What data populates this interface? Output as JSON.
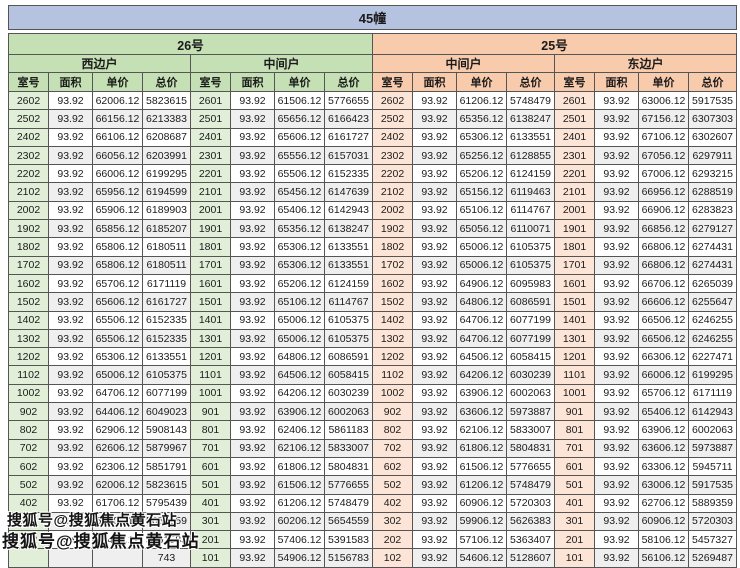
{
  "title": "45幢",
  "watermark": {
    "text": "搜狐号@搜狐焦点黄石站"
  },
  "columns": [
    "室号",
    "面积",
    "单价",
    "总价"
  ],
  "colors": {
    "title_bg": "#b6c3e0",
    "green_header": "#c5e0b4",
    "green_tint": "#e1efd8",
    "orange_header": "#f8cbad",
    "orange_tint": "#fce4d6",
    "border": "#555555",
    "stripe": "#efefef",
    "text": "#1b1b1b"
  },
  "buildings": [
    {
      "name": "26号",
      "theme": "green",
      "units": [
        {
          "name": "西边户",
          "rows": [
            [
              "2602",
              "93.92",
              "62006.12",
              "5823615"
            ],
            [
              "2502",
              "93.92",
              "66156.12",
              "6213383"
            ],
            [
              "2402",
              "93.92",
              "66106.12",
              "6208687"
            ],
            [
              "2302",
              "93.92",
              "66056.12",
              "6203991"
            ],
            [
              "2202",
              "93.92",
              "66006.12",
              "6199295"
            ],
            [
              "2102",
              "93.92",
              "65956.12",
              "6194599"
            ],
            [
              "2002",
              "93.92",
              "65906.12",
              "6189903"
            ],
            [
              "1902",
              "93.92",
              "65856.12",
              "6185207"
            ],
            [
              "1802",
              "93.92",
              "65806.12",
              "6180511"
            ],
            [
              "1702",
              "93.92",
              "65806.12",
              "6180511"
            ],
            [
              "1602",
              "93.92",
              "65706.12",
              "6171119"
            ],
            [
              "1502",
              "93.92",
              "65606.12",
              "6161727"
            ],
            [
              "1402",
              "93.92",
              "65506.12",
              "6152335"
            ],
            [
              "1302",
              "93.92",
              "65506.12",
              "6152335"
            ],
            [
              "1202",
              "93.92",
              "65306.12",
              "6133551"
            ],
            [
              "1102",
              "93.92",
              "65006.12",
              "6105375"
            ],
            [
              "1002",
              "93.92",
              "64706.12",
              "6077199"
            ],
            [
              "902",
              "93.92",
              "64406.12",
              "6049023"
            ],
            [
              "802",
              "93.92",
              "62906.12",
              "5908143"
            ],
            [
              "702",
              "93.92",
              "62606.12",
              "5879967"
            ],
            [
              "602",
              "93.92",
              "62306.12",
              "5851791"
            ],
            [
              "502",
              "93.92",
              "62006.12",
              "5823615"
            ],
            [
              "402",
              "93.92",
              "61706.12",
              "5795439"
            ],
            [
              "302",
              "93.92",
              "60206.12",
              "5654559"
            ],
            [
              "202",
              "93.92",
              "57406.12",
              "5391583"
            ],
            [
              "",
              "",
              "",
              "743"
            ]
          ]
        },
        {
          "name": "中间户",
          "rows": [
            [
              "2601",
              "93.92",
              "61506.12",
              "5776655"
            ],
            [
              "2501",
              "93.92",
              "65656.12",
              "6166423"
            ],
            [
              "2401",
              "93.92",
              "65606.12",
              "6161727"
            ],
            [
              "2301",
              "93.92",
              "65556.12",
              "6157031"
            ],
            [
              "2201",
              "93.92",
              "65506.12",
              "6152335"
            ],
            [
              "2101",
              "93.92",
              "65456.12",
              "6147639"
            ],
            [
              "2001",
              "93.92",
              "65406.12",
              "6142943"
            ],
            [
              "1901",
              "93.92",
              "65356.12",
              "6138247"
            ],
            [
              "1801",
              "93.92",
              "65306.12",
              "6133551"
            ],
            [
              "1701",
              "93.92",
              "65306.12",
              "6133551"
            ],
            [
              "1601",
              "93.92",
              "65206.12",
              "6124159"
            ],
            [
              "1501",
              "93.92",
              "65106.12",
              "6114767"
            ],
            [
              "1401",
              "93.92",
              "65006.12",
              "6105375"
            ],
            [
              "1301",
              "93.92",
              "65006.12",
              "6105375"
            ],
            [
              "1201",
              "93.92",
              "64806.12",
              "6086591"
            ],
            [
              "1101",
              "93.92",
              "64506.12",
              "6058415"
            ],
            [
              "1001",
              "93.92",
              "64206.12",
              "6030239"
            ],
            [
              "901",
              "93.92",
              "63906.12",
              "6002063"
            ],
            [
              "801",
              "93.92",
              "62406.12",
              "5861183"
            ],
            [
              "701",
              "93.92",
              "62106.12",
              "5833007"
            ],
            [
              "601",
              "93.92",
              "61806.12",
              "5804831"
            ],
            [
              "501",
              "93.92",
              "61506.12",
              "5776655"
            ],
            [
              "401",
              "93.92",
              "61206.12",
              "5748479"
            ],
            [
              "301",
              "93.92",
              "60206.12",
              "5654559"
            ],
            [
              "201",
              "93.92",
              "57406.12",
              "5391583"
            ],
            [
              "101",
              "93.92",
              "54906.12",
              "5156783"
            ]
          ]
        }
      ]
    },
    {
      "name": "25号",
      "theme": "orange",
      "units": [
        {
          "name": "中间户",
          "rows": [
            [
              "2602",
              "93.92",
              "61206.12",
              "5748479"
            ],
            [
              "2502",
              "93.92",
              "65356.12",
              "6138247"
            ],
            [
              "2402",
              "93.92",
              "65306.12",
              "6133551"
            ],
            [
              "2302",
              "93.92",
              "65256.12",
              "6128855"
            ],
            [
              "2202",
              "93.92",
              "65206.12",
              "6124159"
            ],
            [
              "2102",
              "93.92",
              "65156.12",
              "6119463"
            ],
            [
              "2002",
              "93.92",
              "65106.12",
              "6114767"
            ],
            [
              "1902",
              "93.92",
              "65056.12",
              "6110071"
            ],
            [
              "1802",
              "93.92",
              "65006.12",
              "6105375"
            ],
            [
              "1702",
              "93.92",
              "65006.12",
              "6105375"
            ],
            [
              "1602",
              "93.92",
              "64906.12",
              "6095983"
            ],
            [
              "1502",
              "93.92",
              "64806.12",
              "6086591"
            ],
            [
              "1402",
              "93.92",
              "64706.12",
              "6077199"
            ],
            [
              "1302",
              "93.92",
              "64706.12",
              "6077199"
            ],
            [
              "1202",
              "93.92",
              "64506.12",
              "6058415"
            ],
            [
              "1102",
              "93.92",
              "64206.12",
              "6030239"
            ],
            [
              "1002",
              "93.92",
              "63906.12",
              "6002063"
            ],
            [
              "902",
              "93.92",
              "63606.12",
              "5973887"
            ],
            [
              "802",
              "93.92",
              "62106.12",
              "5833007"
            ],
            [
              "702",
              "93.92",
              "61806.12",
              "5804831"
            ],
            [
              "602",
              "93.92",
              "61506.12",
              "5776655"
            ],
            [
              "502",
              "93.92",
              "61206.12",
              "5748479"
            ],
            [
              "402",
              "93.92",
              "60906.12",
              "5720303"
            ],
            [
              "302",
              "93.92",
              "59906.12",
              "5626383"
            ],
            [
              "202",
              "93.92",
              "57106.12",
              "5363407"
            ],
            [
              "102",
              "93.92",
              "54606.12",
              "5128607"
            ]
          ]
        },
        {
          "name": "东边户",
          "rows": [
            [
              "2601",
              "93.92",
              "63006.12",
              "5917535"
            ],
            [
              "2501",
              "93.92",
              "67156.12",
              "6307303"
            ],
            [
              "2401",
              "93.92",
              "67106.12",
              "6302607"
            ],
            [
              "2301",
              "93.92",
              "67056.12",
              "6297911"
            ],
            [
              "2201",
              "93.92",
              "67006.12",
              "6293215"
            ],
            [
              "2101",
              "93.92",
              "66956.12",
              "6288519"
            ],
            [
              "2001",
              "93.92",
              "66906.12",
              "6283823"
            ],
            [
              "1901",
              "93.92",
              "66856.12",
              "6279127"
            ],
            [
              "1801",
              "93.92",
              "66806.12",
              "6274431"
            ],
            [
              "1701",
              "93.92",
              "66806.12",
              "6274431"
            ],
            [
              "1601",
              "93.92",
              "66706.12",
              "6265039"
            ],
            [
              "1501",
              "93.92",
              "66606.12",
              "6255647"
            ],
            [
              "1401",
              "93.92",
              "66506.12",
              "6246255"
            ],
            [
              "1301",
              "93.92",
              "66506.12",
              "6246255"
            ],
            [
              "1201",
              "93.92",
              "66306.12",
              "6227471"
            ],
            [
              "1101",
              "93.92",
              "66006.12",
              "6199295"
            ],
            [
              "1001",
              "93.92",
              "65706.12",
              "6171119"
            ],
            [
              "901",
              "93.92",
              "65406.12",
              "6142943"
            ],
            [
              "801",
              "93.92",
              "63906.12",
              "6002063"
            ],
            [
              "701",
              "93.92",
              "63606.12",
              "5973887"
            ],
            [
              "601",
              "93.92",
              "63306.12",
              "5945711"
            ],
            [
              "501",
              "93.92",
              "63006.12",
              "5917535"
            ],
            [
              "401",
              "93.92",
              "62706.12",
              "5889359"
            ],
            [
              "301",
              "93.92",
              "60906.12",
              "5720303"
            ],
            [
              "201",
              "93.92",
              "58106.12",
              "5457327"
            ],
            [
              "101",
              "93.92",
              "56106.12",
              "5269487"
            ]
          ]
        }
      ]
    }
  ]
}
